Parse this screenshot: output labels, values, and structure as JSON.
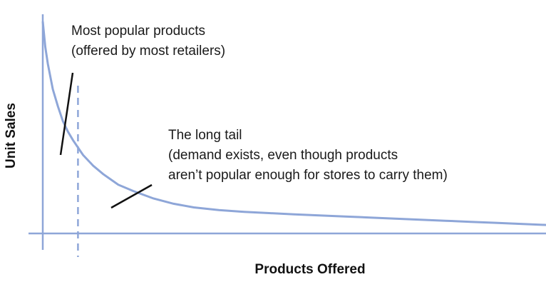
{
  "colors": {
    "curve": "#8ea6d8",
    "axis": "#8ea6d8",
    "divider": "#8ea6d8",
    "text": "#1a1a1a",
    "pointer": "#111111"
  },
  "chart_data": {
    "type": "line",
    "xlabel": "Products Offered",
    "ylabel": "Unit Sales",
    "xlim": [
      0,
      100
    ],
    "ylim": [
      0,
      100
    ],
    "grid": false,
    "ticks_shown": false,
    "series": [
      {
        "x": [
          0,
          0.5,
          1,
          2,
          3,
          4,
          5,
          6,
          8,
          10,
          12,
          15,
          18,
          22,
          26,
          30,
          35,
          40,
          45,
          50,
          55,
          60,
          65,
          70,
          75,
          80,
          85,
          90,
          95,
          100
        ],
        "values": [
          100,
          88,
          80,
          68,
          60,
          53,
          48,
          44,
          37,
          32,
          28,
          23,
          20,
          16.5,
          14,
          12.3,
          11,
          10.2,
          9.6,
          9.0,
          8.5,
          8.0,
          7.5,
          7.0,
          6.5,
          6.0,
          5.5,
          5.0,
          4.5,
          4.0
        ]
      }
    ],
    "divider_x": 7,
    "annotations": [
      {
        "id": "head",
        "lines": [
          "Most popular products",
          "(offered by most retailers)"
        ]
      },
      {
        "id": "tail",
        "lines": [
          "The long tail",
          "(demand exists, even though products",
          "aren’t popular enough for stores to carry them)"
        ]
      }
    ]
  }
}
